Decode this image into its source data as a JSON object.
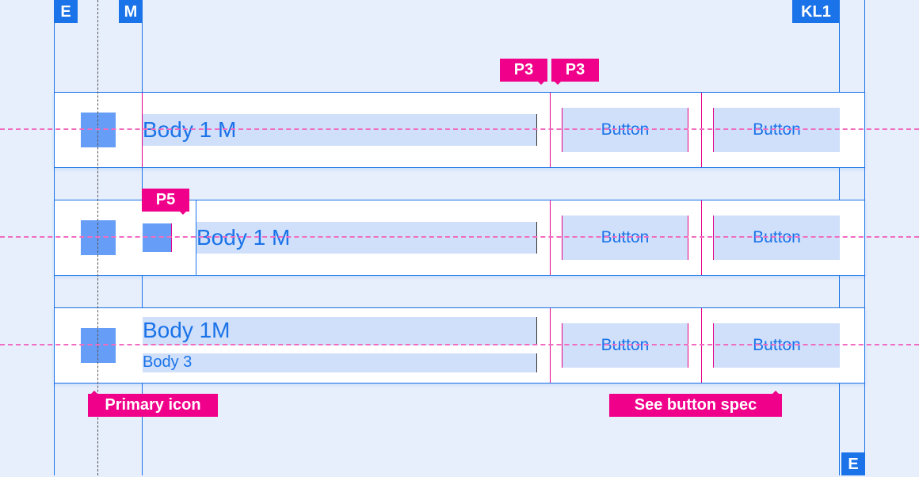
{
  "keylines": {
    "left_edge": "E",
    "margin": "M",
    "keyline": "KL1",
    "right_edge": "E"
  },
  "padding_tags": {
    "p3_left": "P3",
    "p3_right": "P3",
    "p5": "P5"
  },
  "rows": [
    {
      "title": "Body 1 M",
      "buttons": [
        "Button",
        "Button"
      ]
    },
    {
      "title": "Body 1 M",
      "buttons": [
        "Button",
        "Button"
      ]
    },
    {
      "title": "Body 1M",
      "subtitle": "Body 3",
      "buttons": [
        "Button",
        "Button"
      ]
    }
  ],
  "annotations": {
    "primary_icon": "Primary icon",
    "button_spec": "See button spec"
  },
  "colors": {
    "keyline": "#1a73e8",
    "padding": "#f0008a",
    "background": "#e7effc",
    "highlight": "#d0e0fa",
    "icon": "#669df6"
  }
}
